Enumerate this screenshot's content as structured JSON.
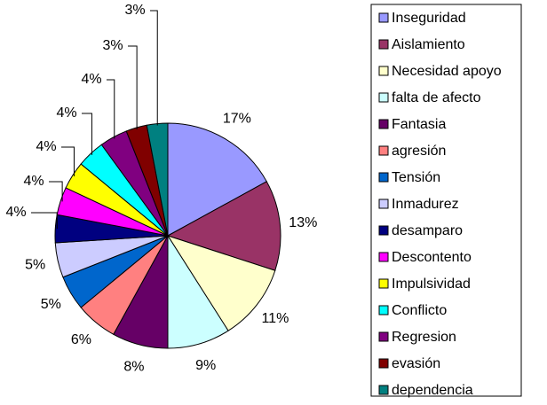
{
  "chart_data": {
    "type": "pie",
    "categories": [
      "Inseguridad",
      "Aislamiento",
      "Necesidad apoyo",
      "falta de afecto",
      "Fantasia",
      "agresión",
      "Tensión",
      "Inmadurez",
      "desamparo",
      "Descontento",
      "Impulsividad",
      "Conflicto",
      "Regresion",
      "evasión",
      "dependencia"
    ],
    "values": [
      17,
      13,
      11,
      9,
      8,
      6,
      5,
      5,
      4,
      4,
      4,
      4,
      4,
      3,
      3
    ],
    "value_labels": [
      "17%",
      "13%",
      "11%",
      "9%",
      "8%",
      "6%",
      "5%",
      "5%",
      "4%",
      "4%",
      "4%",
      "4%",
      "4%",
      "3%",
      "3%"
    ],
    "colors": [
      "#9999FF",
      "#993366",
      "#FFFFCC",
      "#CCFFFF",
      "#660066",
      "#FF8080",
      "#0066CC",
      "#CCCCFF",
      "#000080",
      "#FF00FF",
      "#FFFF00",
      "#00FFFF",
      "#800080",
      "#800000",
      "#008080"
    ],
    "legend": "right"
  }
}
